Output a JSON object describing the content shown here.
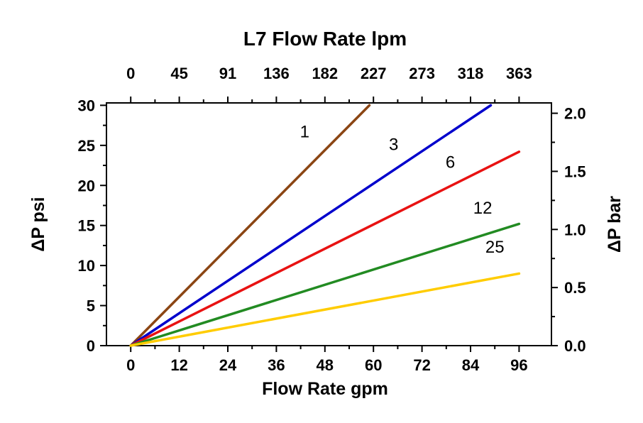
{
  "chart_data": {
    "type": "line",
    "title": "L7 Flow Rate lpm",
    "xlabel_bottom": "Flow Rate gpm",
    "ylabel_left": "ΔP psi",
    "ylabel_right": "ΔP bar",
    "x_bottom_ticks": [
      0,
      12,
      24,
      36,
      48,
      60,
      72,
      84,
      96
    ],
    "x_top_ticks": [
      "0",
      "45",
      "91",
      "136",
      "182",
      "227",
      "273",
      "318",
      "363"
    ],
    "y_left_ticks": [
      0,
      5,
      10,
      15,
      20,
      25,
      30
    ],
    "y_right_ticks": [
      "0.0",
      "0.5",
      "1.0",
      "1.5",
      "2.0"
    ],
    "xlim": [
      -6,
      104
    ],
    "ylim": [
      0,
      30.3
    ],
    "psi_per_bar": 14.504,
    "grid": false,
    "legend": "inline-line-labels",
    "axis_color": "#000000",
    "series": [
      {
        "name": "1",
        "color": "#8B4513",
        "points": [
          [
            0,
            0
          ],
          [
            59,
            30
          ]
        ],
        "label_pos": [
          43,
          26
        ]
      },
      {
        "name": "3",
        "color": "#0000CC",
        "points": [
          [
            0,
            0
          ],
          [
            89,
            30
          ]
        ],
        "label_pos": [
          65,
          24.4
        ]
      },
      {
        "name": "6",
        "color": "#E81212",
        "points": [
          [
            0,
            0
          ],
          [
            96,
            24.2
          ]
        ],
        "label_pos": [
          79,
          22.2
        ]
      },
      {
        "name": "12",
        "color": "#228B22",
        "points": [
          [
            0,
            0
          ],
          [
            96,
            15.2
          ]
        ],
        "label_pos": [
          87,
          16.5
        ]
      },
      {
        "name": "25",
        "color": "#FFCC00",
        "points": [
          [
            0,
            0
          ],
          [
            96,
            9.0
          ]
        ],
        "label_pos": [
          90,
          11.6
        ]
      }
    ]
  }
}
